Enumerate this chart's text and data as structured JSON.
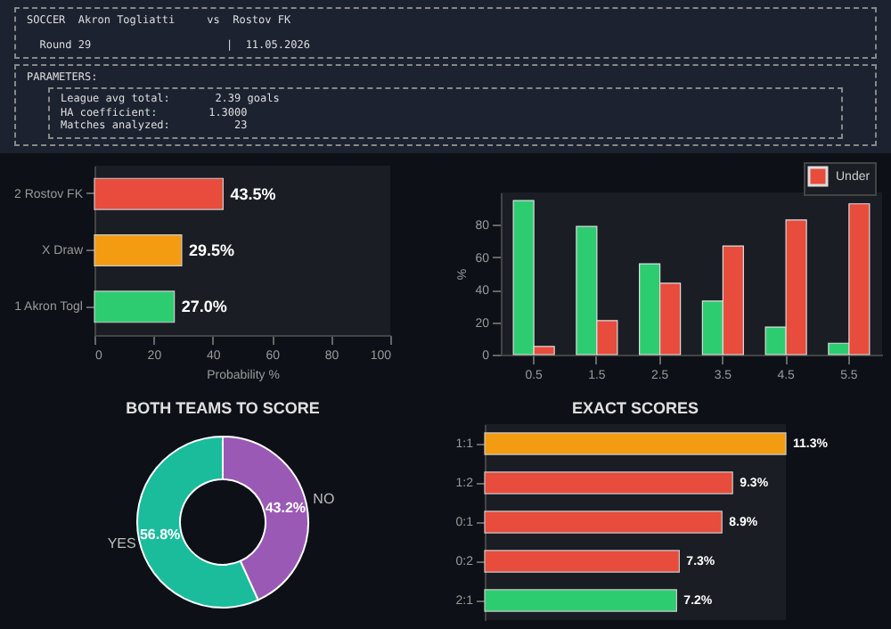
{
  "chart_data": [
    {
      "type": "other",
      "annotations": [
        "SOCCER  Akron Togliatti     vs  Rostov FK",
        "Round 29                     |  11.05.2026",
        "PARAMETERS:",
        "League avg total:       2.39 goals",
        "HA coefficient:        1.3000",
        "Matches analyzed:          23"
      ]
    },
    {
      "type": "bar",
      "orientation": "horizontal",
      "categories": [
        "2  Rostov FK",
        "X  Draw",
        "1  Akron Togl"
      ],
      "values": [
        43.5,
        29.5,
        27.0
      ],
      "colors": [
        "#e74c3c",
        "#f39c12",
        "#2ecc71"
      ],
      "value_labels": [
        "43.5%",
        "29.5%",
        "27.0%"
      ],
      "xlim": [
        0,
        100
      ],
      "xticks": [
        0,
        20,
        40,
        60,
        80,
        100
      ],
      "xlabel": "Probability %"
    },
    {
      "type": "bar",
      "categories": [
        "0.5",
        "1.5",
        "2.5",
        "3.5",
        "4.5",
        "5.5"
      ],
      "ylabel": "%",
      "ylim": [
        0,
        100
      ],
      "yticks": [
        0,
        20,
        40,
        60,
        80
      ],
      "legend": "top right",
      "series": [
        {
          "color": "#2ecc71",
          "values": [
            95,
            79,
            56,
            33,
            17,
            7
          ]
        },
        {
          "name": "Under",
          "color": "#e74c3c",
          "values": [
            5,
            21,
            44,
            67,
            83,
            93
          ]
        }
      ]
    },
    {
      "type": "donut",
      "title": "BOTH TEAMS TO SCORE",
      "categories": [
        "YES",
        "NO"
      ],
      "values": [
        56.8,
        43.2
      ],
      "colors": [
        "#1abc9c",
        "#9b59b6"
      ],
      "value_labels": [
        "56.8%",
        "43.2%"
      ]
    },
    {
      "type": "bar",
      "orientation": "horizontal",
      "title": "EXACT SCORES",
      "categories": [
        "1:1",
        "1:2",
        "0:1",
        "0:2",
        "2:1"
      ],
      "values": [
        11.3,
        9.3,
        8.9,
        7.3,
        7.2
      ],
      "colors": [
        "#f39c12",
        "#e74c3c",
        "#e74c3c",
        "#e74c3c",
        "#2ecc71"
      ],
      "value_labels": [
        "11.3%",
        "9.3%",
        "8.9%",
        "7.3%",
        "7.2%"
      ],
      "tick_labels": "y"
    }
  ]
}
